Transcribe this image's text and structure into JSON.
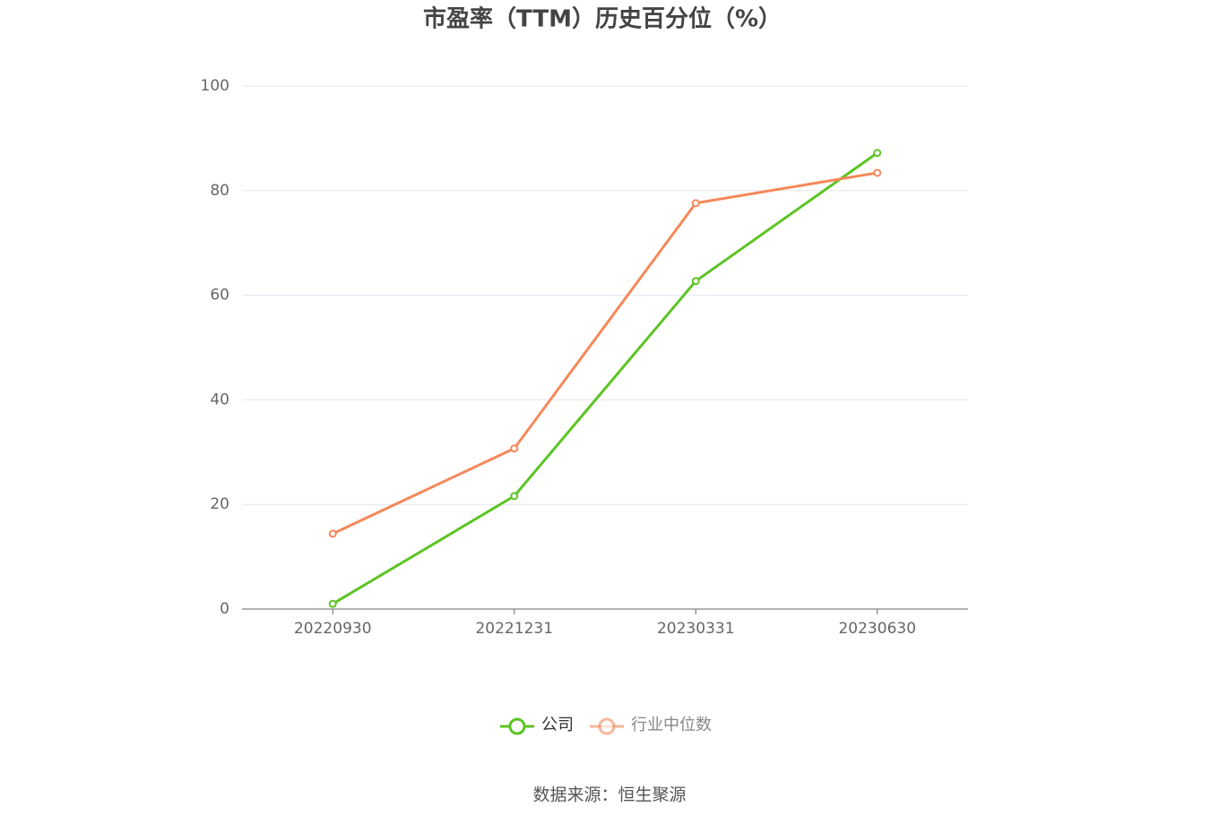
{
  "chart_data": {
    "type": "line",
    "title": "市盈率（TTM）历史百分位（%）",
    "categories": [
      "20220930",
      "20221231",
      "20230331",
      "20230630"
    ],
    "series": [
      {
        "name": "公司",
        "color": "#5cc424",
        "values": [
          1.0,
          21.6,
          62.7,
          87.2
        ]
      },
      {
        "name": "行业中位数",
        "color": "#f4885a",
        "values": [
          14.4,
          30.7,
          77.6,
          83.4
        ]
      }
    ],
    "ylim": [
      0,
      100
    ],
    "yticks": [
      0,
      20,
      40,
      60,
      80,
      100
    ],
    "grid": true,
    "legend": "bottom",
    "source": "数据来源：恒生聚源"
  }
}
